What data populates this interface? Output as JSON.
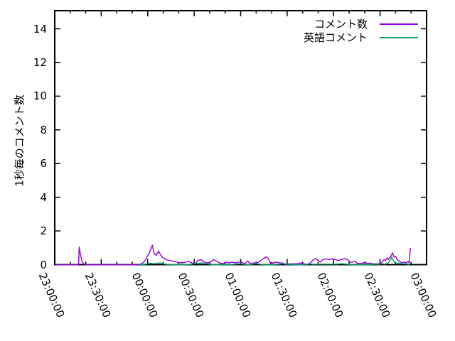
{
  "chart_data": {
    "type": "line",
    "title": "",
    "xlabel": "",
    "ylabel": "1秒毎のコメント数",
    "background_color": "#ffffff",
    "axis_color": "#000000",
    "grid": false,
    "legend_position": "top-right-inside",
    "ylim": [
      0,
      15.1
    ],
    "y_ticks": [
      0,
      2,
      4,
      6,
      8,
      10,
      12,
      14
    ],
    "x_axis_note": "time of day, 23:00:00 through 03:00:00, major ticks every 30 minutes, minor ticks every 10 minutes",
    "x_tick_minutes": [
      0,
      30,
      60,
      90,
      120,
      150,
      180,
      210,
      240
    ],
    "x_tick_labels": [
      "23:00:00",
      "23:30:00",
      "00:00:00",
      "00:30:00",
      "01:00:00",
      "01:30:00",
      "02:00:00",
      "02:30:00",
      "03:00:00"
    ],
    "x_minor_step_minutes": 10,
    "points_format": "[minutes_after_23:00, comments_per_second]",
    "series": [
      {
        "name": "コメント数",
        "color": "#9400d3",
        "points": [
          [
            0.3,
            0
          ],
          [
            6,
            0
          ],
          [
            12,
            0
          ],
          [
            15.4,
            0
          ],
          [
            15.8,
            1.05
          ],
          [
            16.6,
            0.6
          ],
          [
            17.6,
            0.2
          ],
          [
            18.6,
            0.05
          ],
          [
            19.6,
            0
          ],
          [
            26,
            0
          ],
          [
            32,
            0
          ],
          [
            38,
            0
          ],
          [
            44,
            0
          ],
          [
            50,
            0
          ],
          [
            54,
            0
          ],
          [
            56,
            0.05
          ],
          [
            57.5,
            0.15
          ],
          [
            59,
            0.35
          ],
          [
            60.5,
            0.6
          ],
          [
            62,
            0.9
          ],
          [
            63,
            1.15
          ],
          [
            64,
            0.7
          ],
          [
            65.5,
            0.55
          ],
          [
            67,
            0.8
          ],
          [
            68.5,
            0.55
          ],
          [
            70,
            0.4
          ],
          [
            72,
            0.3
          ],
          [
            74,
            0.25
          ],
          [
            76.5,
            0.2
          ],
          [
            79,
            0.15
          ],
          [
            82,
            0.1
          ],
          [
            84.5,
            0.15
          ],
          [
            86.5,
            0.2
          ],
          [
            88.5,
            0.1
          ],
          [
            90.5,
            0.05
          ],
          [
            92.5,
            0.25
          ],
          [
            94.5,
            0.3
          ],
          [
            96.5,
            0.15
          ],
          [
            98.5,
            0.1
          ],
          [
            100.5,
            0.15
          ],
          [
            102.5,
            0.3
          ],
          [
            104.5,
            0.2
          ],
          [
            106.5,
            0.1
          ],
          [
            108.5,
            0.05
          ],
          [
            110.5,
            0.15
          ],
          [
            112.5,
            0.1
          ],
          [
            114.5,
            0.15
          ],
          [
            116.5,
            0.1
          ],
          [
            118.5,
            0.15
          ],
          [
            120.5,
            0.15
          ],
          [
            122.5,
            0.05
          ],
          [
            124.5,
            0.2
          ],
          [
            126.5,
            0.05
          ],
          [
            128.5,
            0.1
          ],
          [
            130.5,
            0.1
          ],
          [
            132.5,
            0.2
          ],
          [
            134.5,
            0.35
          ],
          [
            136.5,
            0.45
          ],
          [
            138,
            0.35
          ],
          [
            139.5,
            0.05
          ],
          [
            141,
            0.1
          ],
          [
            143,
            0.15
          ],
          [
            145,
            0.1
          ],
          [
            147,
            0.1
          ],
          [
            149,
            0
          ],
          [
            151.5,
            0.05
          ],
          [
            154,
            0.05
          ],
          [
            156.5,
            0.05
          ],
          [
            159,
            0.1
          ],
          [
            161,
            0.05
          ],
          [
            163,
            0
          ],
          [
            165,
            0.1
          ],
          [
            167,
            0.3
          ],
          [
            168.5,
            0.35
          ],
          [
            170,
            0.25
          ],
          [
            171.5,
            0.15
          ],
          [
            173,
            0.3
          ],
          [
            175,
            0.35
          ],
          [
            177,
            0.3
          ],
          [
            179,
            0.35
          ],
          [
            181,
            0.3
          ],
          [
            183,
            0.25
          ],
          [
            185,
            0.3
          ],
          [
            187,
            0.35
          ],
          [
            189,
            0.3
          ],
          [
            190.5,
            0.15
          ],
          [
            192,
            0.15
          ],
          [
            193.5,
            0.2
          ],
          [
            195,
            0.1
          ],
          [
            197,
            0.05
          ],
          [
            199,
            0.1
          ],
          [
            200.5,
            0.15
          ],
          [
            202,
            0.05
          ],
          [
            203.5,
            0.1
          ],
          [
            205,
            0.05
          ],
          [
            207,
            0.05
          ],
          [
            209,
            0.05
          ],
          [
            211,
            0.1
          ],
          [
            212.5,
            0.3
          ],
          [
            213.5,
            0.25
          ],
          [
            214.5,
            0.4
          ],
          [
            215.5,
            0.3
          ],
          [
            217,
            0.5
          ],
          [
            218,
            0.7
          ],
          [
            219,
            0.45
          ],
          [
            220,
            0.5
          ],
          [
            221,
            0.3
          ],
          [
            222.5,
            0.2
          ],
          [
            224,
            0.1
          ],
          [
            225.5,
            0.15
          ],
          [
            227,
            0.1
          ],
          [
            228,
            0.2
          ],
          [
            228.8,
            0.1
          ],
          [
            229.6,
            1.0
          ]
        ]
      },
      {
        "name": "英語コメント",
        "color": "#009e73",
        "points": [
          [
            55,
            0
          ],
          [
            58,
            0.02
          ],
          [
            60,
            0.05
          ],
          [
            62,
            0.08
          ],
          [
            64,
            0.05
          ],
          [
            66,
            0.08
          ],
          [
            68,
            0.1
          ],
          [
            70,
            0.05
          ],
          [
            72,
            0.02
          ],
          [
            76,
            0
          ],
          [
            82,
            0
          ],
          [
            88,
            0.02
          ],
          [
            90,
            0.05
          ],
          [
            92,
            0.08
          ],
          [
            95,
            0.1
          ],
          [
            97,
            0.05
          ],
          [
            99,
            0.05
          ],
          [
            101,
            0
          ],
          [
            106,
            0
          ],
          [
            111,
            0
          ],
          [
            116,
            0.02
          ],
          [
            118,
            0.05
          ],
          [
            120,
            0.05
          ],
          [
            122,
            0.02
          ],
          [
            126,
            0
          ],
          [
            129,
            0.05
          ],
          [
            131,
            0.05
          ],
          [
            133,
            0.02
          ],
          [
            137,
            0
          ],
          [
            141,
            0
          ],
          [
            145,
            0.03
          ],
          [
            147,
            0.05
          ],
          [
            149,
            0.05
          ],
          [
            151,
            0.02
          ],
          [
            155,
            0
          ],
          [
            159,
            0
          ],
          [
            162,
            0.02
          ],
          [
            164,
            0.05
          ],
          [
            166,
            0.03
          ],
          [
            168,
            0.02
          ],
          [
            170,
            0.03
          ],
          [
            173,
            0.03
          ],
          [
            176,
            0.03
          ],
          [
            179,
            0.03
          ],
          [
            182,
            0.03
          ],
          [
            184,
            0.05
          ],
          [
            186,
            0.05
          ],
          [
            188,
            0.03
          ],
          [
            190,
            0.02
          ],
          [
            193,
            0
          ],
          [
            197,
            0
          ],
          [
            200,
            0
          ],
          [
            203,
            0
          ],
          [
            205,
            0.02
          ],
          [
            207,
            0.03
          ],
          [
            209,
            0.02
          ],
          [
            211,
            0.05
          ],
          [
            213,
            0.03
          ],
          [
            215,
            0.08
          ],
          [
            216.5,
            0.25
          ],
          [
            217.5,
            0.45
          ],
          [
            218.5,
            0.25
          ],
          [
            219.5,
            0.12
          ],
          [
            220.5,
            0.06
          ],
          [
            222,
            0.1
          ],
          [
            223.5,
            0.05
          ],
          [
            225,
            0.05
          ],
          [
            226.5,
            0.05
          ],
          [
            228,
            0.03
          ],
          [
            228.8,
            0
          ]
        ]
      }
    ]
  }
}
